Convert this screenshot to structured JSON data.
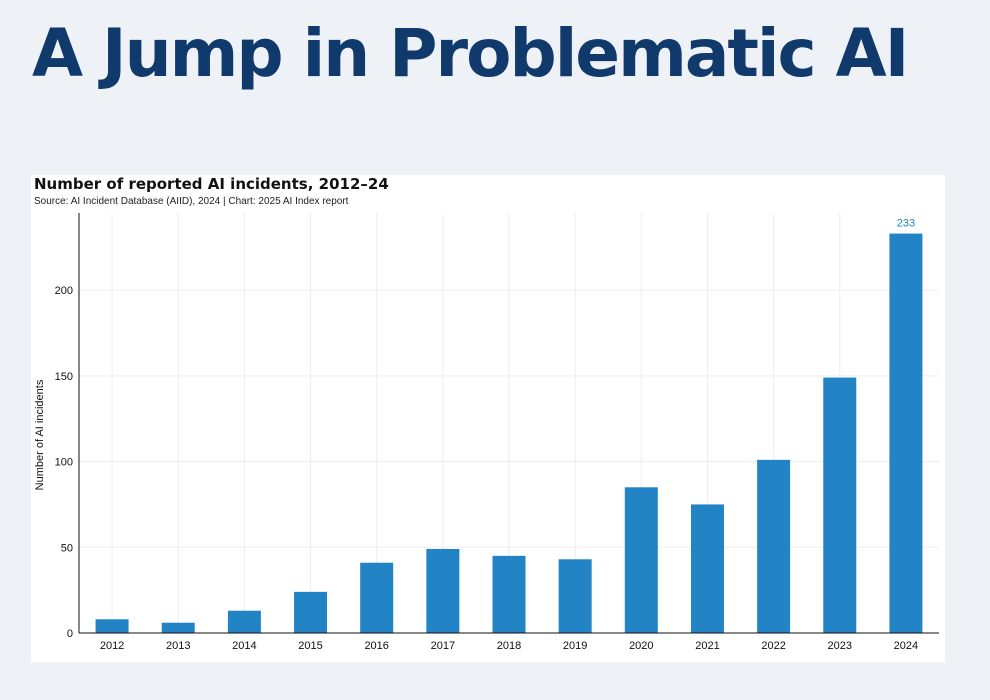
{
  "slide": {
    "title": "A Jump in Problematic AI"
  },
  "chart_data": {
    "type": "bar",
    "title": "Number of reported AI incidents, 2012–24",
    "subtitle": "Source: AI Incident Database (AIID), 2024 | Chart: 2025 AI Index report",
    "xlabel": "",
    "ylabel": "Number of AI incidents",
    "categories": [
      "2012",
      "2013",
      "2014",
      "2015",
      "2016",
      "2017",
      "2018",
      "2019",
      "2020",
      "2021",
      "2022",
      "2023",
      "2024"
    ],
    "values": [
      8,
      6,
      13,
      24,
      41,
      49,
      45,
      43,
      85,
      75,
      101,
      149,
      233
    ],
    "ylim": [
      0,
      245
    ],
    "yticks": [
      0,
      50,
      100,
      150,
      200
    ],
    "grid": true,
    "legend": "none",
    "data_labels": [
      {
        "category": "2024",
        "text": "233"
      }
    ],
    "colors": {
      "bar": "#2284c5",
      "label": "#2284c5",
      "grid": "#eeeeee",
      "axis": "#111111"
    }
  }
}
